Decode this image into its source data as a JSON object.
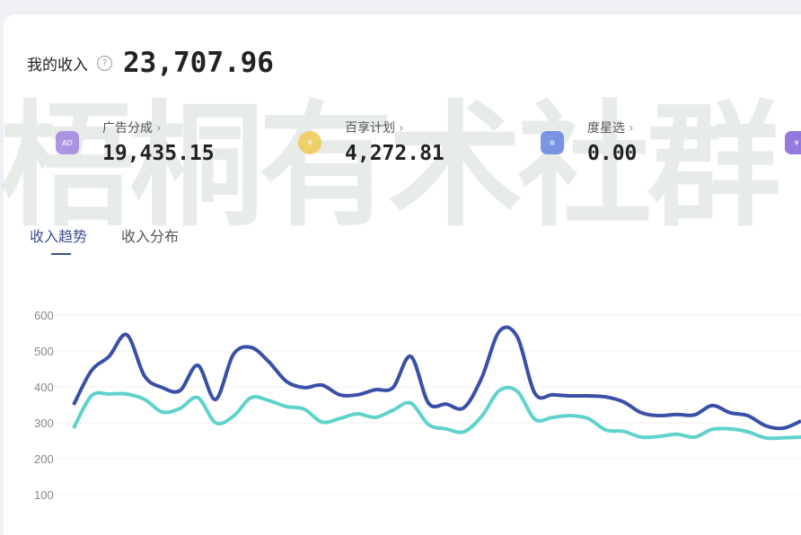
{
  "watermark": "梧桐有术社群",
  "header": {
    "title": "我的收入",
    "help_icon": "question-circle-icon",
    "total": "23,707.96"
  },
  "stats": [
    {
      "label": "广告分成",
      "value": "19,435.15",
      "icon": "ad-icon",
      "color": "#9b7ee0"
    },
    {
      "label": "百享计划",
      "value": "4,272.81",
      "icon": "coin-bag-icon",
      "color": "#f0c84a"
    },
    {
      "label": "度星选",
      "value": "0.00",
      "icon": "shop-icon",
      "color": "#5c7de0"
    },
    {
      "label": "",
      "value": "",
      "icon": "wallet-icon",
      "color": "#7a5ad8"
    }
  ],
  "tabs": [
    {
      "label": "收入趋势",
      "active": true
    },
    {
      "label": "收入分布",
      "active": false
    }
  ],
  "chart_data": {
    "type": "line",
    "ylim": [
      100,
      600
    ],
    "yticks": [
      "600",
      "500",
      "400",
      "300",
      "200",
      "100"
    ],
    "grid": true,
    "series": [
      {
        "color": "#3a4fa6",
        "values": [
          350,
          445,
          485,
          545,
          430,
          398,
          390,
          460,
          365,
          490,
          510,
          470,
          415,
          398,
          405,
          378,
          378,
          392,
          398,
          485,
          355,
          352,
          342,
          425,
          555,
          540,
          382,
          378,
          375,
          375,
          372,
          358,
          328,
          320,
          323,
          322,
          348,
          328,
          320,
          292,
          285,
          305
        ]
      },
      {
        "color": "#5fd3cb",
        "values": [
          285,
          375,
          380,
          380,
          365,
          330,
          340,
          370,
          300,
          318,
          370,
          362,
          345,
          338,
          302,
          312,
          325,
          315,
          335,
          355,
          295,
          283,
          275,
          318,
          390,
          388,
          310,
          315,
          320,
          312,
          280,
          276,
          260,
          262,
          268,
          260,
          282,
          283,
          275,
          258,
          258,
          260
        ]
      }
    ]
  }
}
